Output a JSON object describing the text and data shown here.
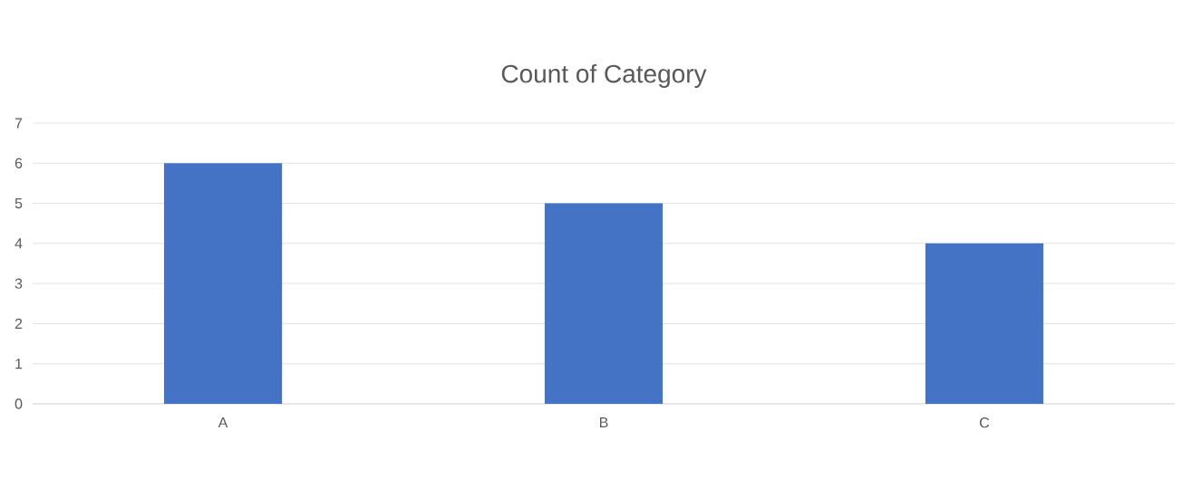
{
  "chart_data": {
    "type": "bar",
    "title": "Count of Category",
    "categories": [
      "A",
      "B",
      "C"
    ],
    "values": [
      6,
      5,
      4
    ],
    "color": "#4472c4",
    "ylim": [
      0,
      7
    ],
    "yticks": [
      0,
      1,
      2,
      3,
      4,
      5,
      6,
      7
    ],
    "grid": "y"
  }
}
